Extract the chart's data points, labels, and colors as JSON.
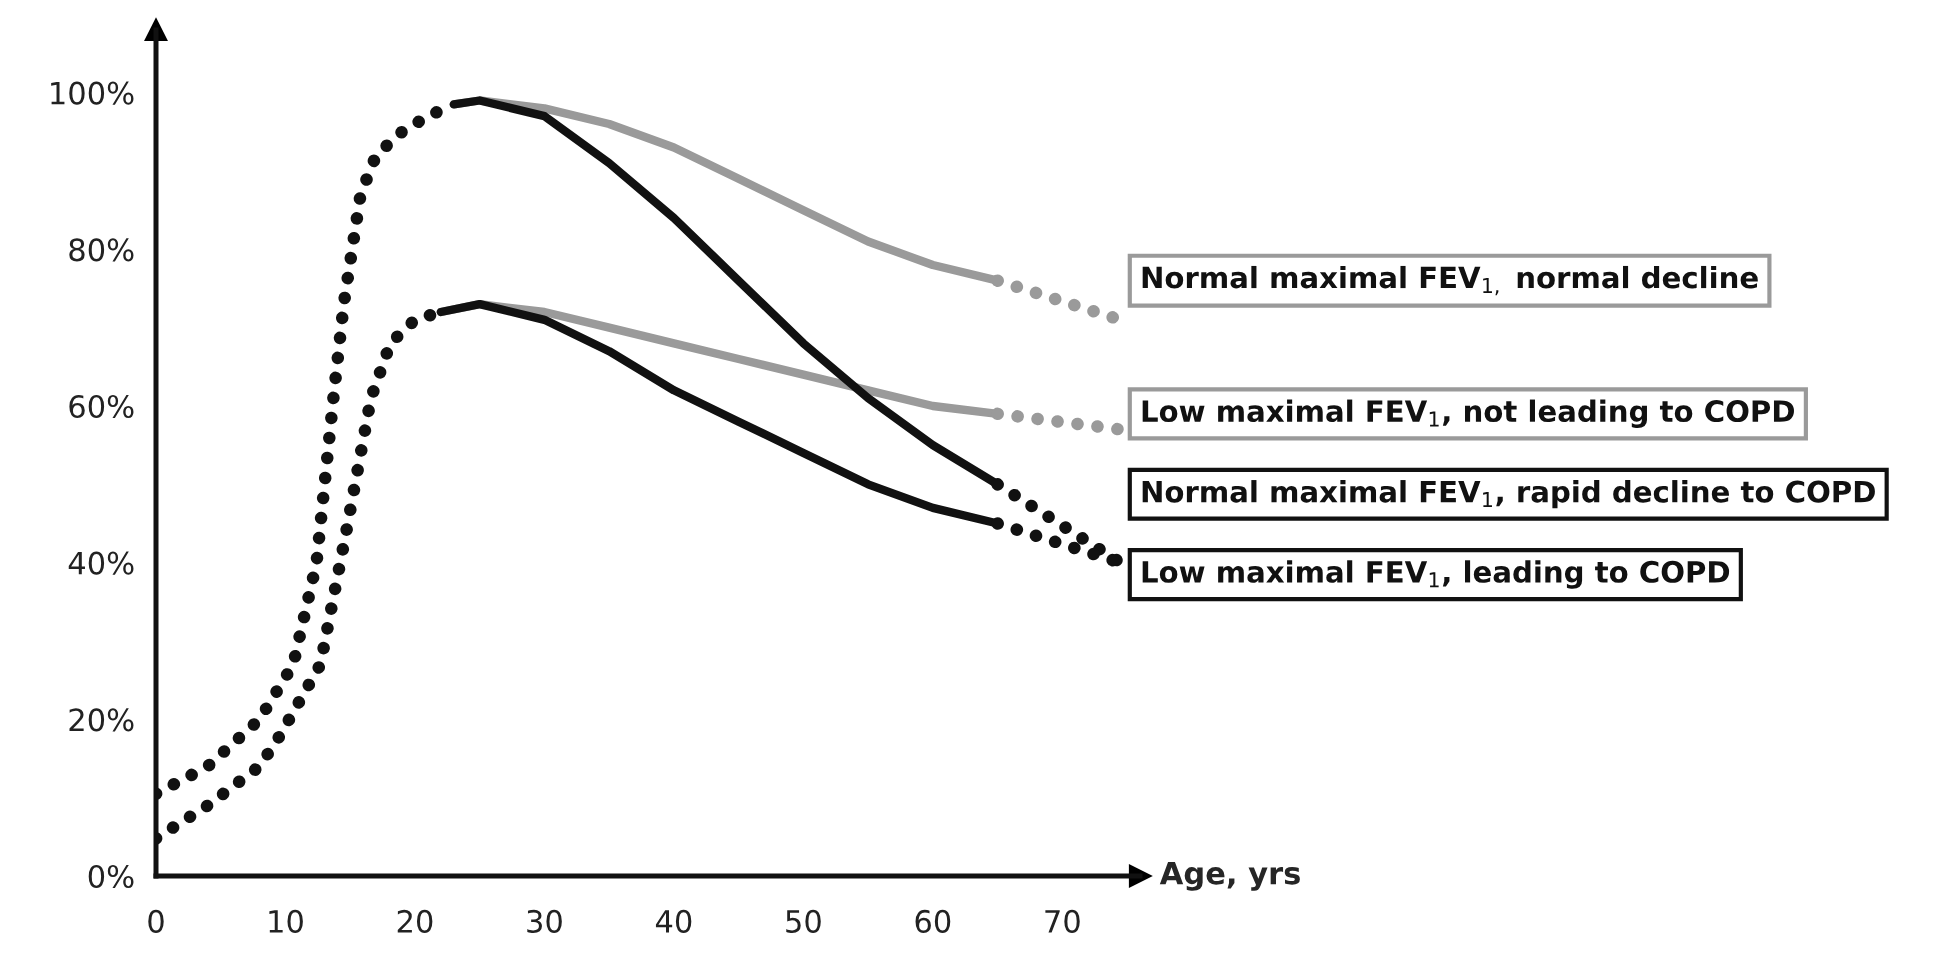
{
  "chart_data": {
    "type": "line",
    "xlabel": "Age, yrs",
    "xlim": [
      0,
      76
    ],
    "xticks": [
      0,
      10,
      20,
      30,
      40,
      50,
      60,
      70
    ],
    "ylim": [
      0,
      108
    ],
    "yticks": [
      {
        "value": 0,
        "label": "0%"
      },
      {
        "value": 20,
        "label": "20%"
      },
      {
        "value": 40,
        "label": "40%"
      },
      {
        "value": 60,
        "label": "60%"
      },
      {
        "value": 80,
        "label": "80%"
      },
      {
        "value": 100,
        "label": "100%"
      }
    ],
    "grid": false,
    "legend": false,
    "marker": "none",
    "series": [
      {
        "color": "#111111",
        "line_style": "dotted",
        "x": [
          0,
          4,
          8,
          10.6,
          12.4,
          13.7,
          14.5,
          15.8,
          17,
          19,
          21,
          23
        ],
        "values": [
          10.5,
          14,
          20,
          27,
          40,
          61,
          73,
          87,
          92,
          95,
          97,
          98.5
        ]
      },
      {
        "color": "#111111",
        "line_style": "dotted",
        "x": [
          0,
          4,
          8,
          9.6,
          12.7,
          14.7,
          16.6,
          18.1,
          20,
          22
        ],
        "values": [
          4.8,
          9,
          14,
          18,
          27,
          44,
          61,
          68,
          71,
          72
        ]
      },
      {
        "name": "Normal maximal FEV$_{1,}$ normal decline",
        "color": "#9a9a9a",
        "line_style": "solid",
        "x": [
          23,
          25,
          30,
          35,
          40,
          45,
          50,
          55,
          60,
          65
        ],
        "values": [
          98.5,
          99,
          98,
          96,
          93,
          89,
          85,
          81,
          78,
          76
        ]
      },
      {
        "name": "Low maximal FEV$_{1}$, not leading to COPD",
        "color": "#9a9a9a",
        "line_style": "solid",
        "x": [
          22,
          25,
          30,
          35,
          40,
          45,
          50,
          55,
          60,
          65
        ],
        "values": [
          72,
          73,
          72,
          70,
          68,
          66,
          64,
          62,
          60,
          59
        ]
      },
      {
        "name": "Normal maximal FEV$_{1}$, rapid decline to COPD",
        "color": "#111111",
        "line_style": "solid",
        "x": [
          23,
          25,
          30,
          35,
          40,
          45,
          50,
          55,
          60,
          65
        ],
        "values": [
          98.5,
          99,
          97,
          91,
          84,
          76,
          68,
          61,
          55,
          50
        ]
      },
      {
        "name": "Low maximal FEV$_{1}$, leading to COPD",
        "color": "#111111",
        "line_style": "solid",
        "x": [
          22,
          25,
          30,
          35,
          40,
          45,
          50,
          55,
          60,
          65
        ],
        "values": [
          72,
          73,
          71,
          67,
          62,
          58,
          54,
          50,
          47,
          45
        ]
      },
      {
        "color": "#9a9a9a",
        "line_style": "dotted",
        "x": [
          65,
          74.5
        ],
        "values": [
          76,
          71
        ]
      },
      {
        "color": "#9a9a9a",
        "line_style": "dotted",
        "x": [
          65,
          74.5
        ],
        "values": [
          59,
          57
        ]
      },
      {
        "color": "#111111",
        "line_style": "dotted",
        "x": [
          65,
          74.5
        ],
        "values": [
          50,
          40
        ]
      },
      {
        "color": "#111111",
        "line_style": "dotted",
        "x": [
          65,
          74.5
        ],
        "values": [
          45,
          40
        ]
      }
    ]
  }
}
